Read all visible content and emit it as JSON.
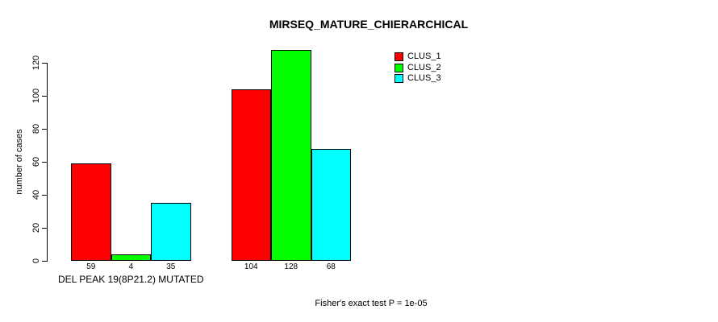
{
  "chart_data": {
    "type": "bar",
    "title": "MIRSEQ_MATURE_CHIERARCHICAL",
    "ylabel": "number of cases",
    "xlabel": "",
    "ylim": [
      0,
      130
    ],
    "yticks": [
      0,
      20,
      40,
      60,
      80,
      100,
      120
    ],
    "grid": false,
    "legend_position": "top-right",
    "series": [
      {
        "name": "CLUS_1",
        "color": "#ff0000"
      },
      {
        "name": "CLUS_2",
        "color": "#00ff00"
      },
      {
        "name": "CLUS_3",
        "color": "#00ffff"
      }
    ],
    "groups": [
      {
        "label": "DEL PEAK 19(8P21.2) MUTATED",
        "values": [
          59,
          4,
          35
        ]
      },
      {
        "label": "",
        "values": [
          104,
          128,
          68
        ]
      }
    ],
    "value_labels_shown": true,
    "annotation": "Fisher's exact test P = 1e-05"
  }
}
